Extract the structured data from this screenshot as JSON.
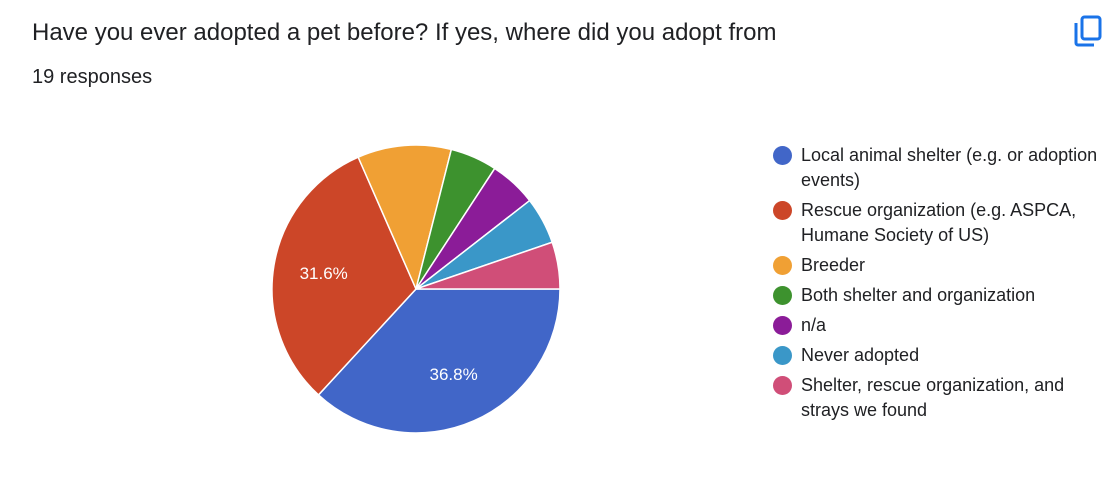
{
  "header": {
    "title": "Have you ever adopted a pet before? If yes, where did you adopt from",
    "response_count": "19 responses",
    "copy_icon": "copy-icon",
    "accent_color": "#1a73e8"
  },
  "chart_data": {
    "type": "pie",
    "total_responses": 19,
    "categories": [
      "Local animal shelter (e.g. or adoption events)",
      "Rescue organization (e.g. ASPCA, Humane Society of US)",
      "Breeder",
      "Both shelter and organization",
      "n/a",
      "Never adopted",
      "Shelter, rescue organization, and strays we found"
    ],
    "values": [
      7,
      6,
      2,
      1,
      1,
      1,
      1
    ],
    "colors": [
      "#4166c8",
      "#cc4628",
      "#f0a034",
      "#3d922e",
      "#8b1c98",
      "#3a97c8",
      "#d04e78"
    ],
    "slice_labels": [
      "36.8%",
      "31.6%",
      "",
      "",
      "",
      "",
      ""
    ],
    "legend_position": "right",
    "start_angle": "3 o'clock",
    "direction": "clockwise"
  }
}
